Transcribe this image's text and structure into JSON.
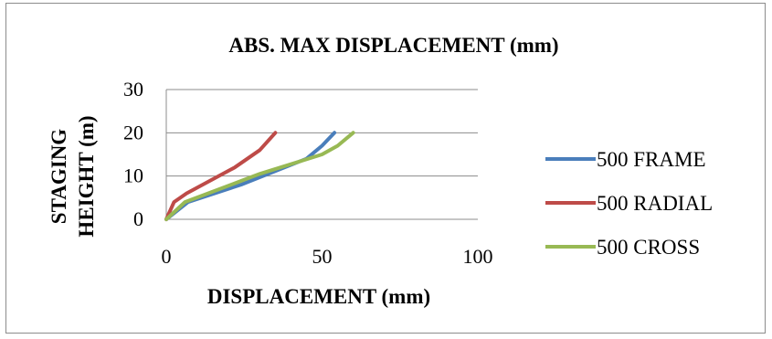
{
  "chart_data": {
    "type": "line",
    "title": "ABS. MAX DISPLACEMENT (mm)",
    "xlabel": "DISPLACEMENT (mm)",
    "ylabel_lines": [
      "STAGING",
      "HEIGHT (m)"
    ],
    "xlim": [
      0,
      100
    ],
    "ylim": [
      0,
      30
    ],
    "xticks": [
      "0",
      "50",
      "100"
    ],
    "yticks": [
      "0",
      "10",
      "20",
      "30"
    ],
    "xtick_values": [
      0,
      50,
      100
    ],
    "ytick_values": [
      0,
      10,
      20,
      30
    ],
    "grid": "horizontal",
    "legend_position": "right",
    "series": [
      {
        "name": "500 FRAME",
        "color": "#4a7ebb",
        "x": [
          0,
          7,
          24,
          45,
          50,
          54
        ],
        "y": [
          0,
          4,
          8,
          14,
          17,
          20
        ]
      },
      {
        "name": "500 RADIAL",
        "color": "#be4b48",
        "x": [
          0,
          2.5,
          6.5,
          22,
          30,
          35
        ],
        "y": [
          0,
          4,
          6,
          12,
          16,
          20
        ]
      },
      {
        "name": "500 CROSS",
        "color": "#98b954",
        "x": [
          0,
          6,
          30,
          50,
          55,
          60
        ],
        "y": [
          0,
          4,
          10.5,
          15,
          17,
          20
        ]
      }
    ]
  }
}
